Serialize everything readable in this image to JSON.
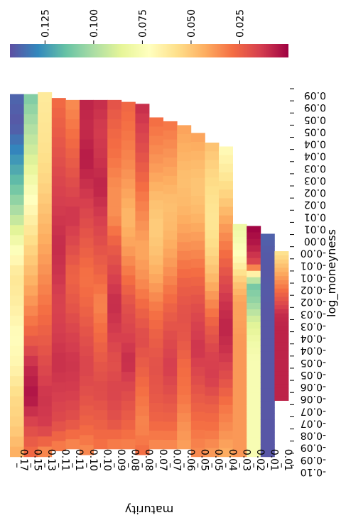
{
  "chart_data": {
    "type": "heatmap",
    "orientation": "rotated 180 degrees",
    "xlabel": "maturity",
    "ylabel": "log_moneyness",
    "maturity_ticks": [
      "0.17",
      "0.15",
      "0.13",
      "0.11",
      "0.11",
      "0.10",
      "0.10",
      "0.09",
      "0.08",
      "0.08",
      "0.07",
      "0.07",
      "0.06",
      "0.05",
      "0.05",
      "0.04",
      "0.03",
      "0.02",
      "0.01",
      "0.01"
    ],
    "log_moneyness_ticks": [
      "0.09",
      "0.09",
      "0.05",
      "0.05",
      "0.04",
      "0.04",
      "0.03",
      "0.03",
      "0.02",
      "0.02",
      "0.01",
      "0.01",
      "0.00",
      "-0.00",
      "-0.01",
      "-0.01",
      "-0.02",
      "-0.02",
      "-0.03",
      "-0.03",
      "-0.04",
      "-0.04",
      "-0.05",
      "-0.05",
      "-0.06",
      "-0.06",
      "-0.07",
      "-0.07",
      "-0.08",
      "-0.09",
      "-0.09",
      "-0.10"
    ],
    "colorbar": {
      "ticks": [
        "0.125",
        "0.100",
        "0.075",
        "0.050",
        "0.025"
      ],
      "tick_values": [
        0.125,
        0.1,
        0.075,
        0.05,
        0.025
      ],
      "range": [
        0.0,
        0.143
      ],
      "colormap": "Spectral"
    },
    "column_top_log_moneyness": [
      0.09,
      0.09,
      0.091,
      0.088,
      0.087,
      0.087,
      0.087,
      0.087,
      0.086,
      0.085,
      0.078,
      0.076,
      0.074,
      0.07,
      0.065,
      0.063,
      0.023,
      0.022,
      0.018,
      0.009
    ],
    "column_bottom_log_moneyness": [
      -0.097,
      -0.097,
      -0.097,
      -0.094,
      -0.093,
      -0.096,
      -0.093,
      -0.093,
      -0.093,
      -0.096,
      -0.093,
      -0.093,
      -0.093,
      -0.097,
      -0.097,
      -0.097,
      -0.097,
      -0.097,
      -0.097,
      -0.068
    ],
    "representative_values_by_column": [
      [
        0.137,
        0.141,
        0.127,
        0.114,
        0.097,
        0.076,
        0.06,
        0.064,
        0.071,
        0.067,
        0.056,
        0.052,
        0.042
      ],
      [
        0.11,
        0.1,
        0.09,
        0.077,
        0.066,
        0.055,
        0.046,
        0.036,
        0.025,
        0.01,
        0.004,
        0.018,
        0.029
      ],
      [
        0.062,
        0.06,
        0.058,
        0.054,
        0.048,
        0.042,
        0.036,
        0.03,
        0.024,
        0.018,
        0.012,
        0.014,
        0.038
      ],
      [
        0.028,
        0.024,
        0.02,
        0.016,
        0.013,
        0.01,
        0.012,
        0.016,
        0.014,
        0.011,
        0.014,
        0.018,
        0.034
      ],
      [
        0.036,
        0.03,
        0.024,
        0.018,
        0.012,
        0.018,
        0.026,
        0.022,
        0.016,
        0.012,
        0.014,
        0.02,
        0.036
      ],
      [
        0.008,
        0.01,
        0.006,
        0.012,
        0.018,
        0.024,
        0.03,
        0.026,
        0.02,
        0.016,
        0.02,
        0.026,
        0.036
      ],
      [
        0.01,
        0.014,
        0.012,
        0.008,
        0.014,
        0.02,
        0.026,
        0.034,
        0.028,
        0.022,
        0.018,
        0.024,
        0.03
      ],
      [
        0.02,
        0.026,
        0.03,
        0.036,
        0.036,
        0.024,
        0.016,
        0.01,
        0.014,
        0.02,
        0.016,
        0.02,
        0.034
      ],
      [
        0.026,
        0.03,
        0.034,
        0.04,
        0.046,
        0.04,
        0.03,
        0.02,
        0.016,
        0.01,
        0.018,
        0.024,
        0.034
      ],
      [
        0.01,
        0.016,
        0.022,
        0.03,
        0.036,
        0.042,
        0.036,
        0.026,
        0.018,
        0.024,
        0.03,
        0.034,
        0.028
      ],
      [
        0.028,
        0.034,
        0.04,
        0.048,
        0.052,
        0.048,
        0.04,
        0.03,
        0.024,
        0.02,
        0.022,
        0.026,
        0.036
      ],
      [
        0.03,
        0.036,
        0.042,
        0.048,
        0.046,
        0.04,
        0.032,
        0.024,
        0.018,
        0.014,
        0.02,
        0.026,
        0.036
      ],
      [
        0.04,
        0.044,
        0.048,
        0.046,
        0.04,
        0.032,
        0.024,
        0.02,
        0.022,
        0.028,
        0.03,
        0.036,
        0.04
      ],
      [
        0.04,
        0.046,
        0.05,
        0.046,
        0.038,
        0.03,
        0.022,
        0.016,
        0.012,
        0.018,
        0.024,
        0.03,
        0.036
      ],
      [
        0.048,
        0.054,
        0.058,
        0.06,
        0.056,
        0.048,
        0.036,
        0.024,
        0.016,
        0.014,
        0.024,
        0.03,
        0.04
      ],
      [
        0.07,
        0.062,
        0.052,
        0.04,
        0.03,
        0.02,
        0.012,
        0.008,
        0.012,
        0.02,
        0.03,
        0.036,
        0.044
      ],
      [
        0.082,
        0.076,
        0.066,
        0.05,
        0.04,
        0.04,
        0.038,
        0.038,
        0.038,
        0.038,
        0.038,
        0.038,
        0.038
      ],
      [
        0.0,
        0.006,
        0.018,
        0.112,
        0.104,
        0.088,
        0.08,
        0.076,
        0.076,
        0.076,
        0.076,
        0.076,
        0.076
      ],
      [
        0.138,
        0.14,
        0.141,
        0.14,
        0.141,
        0.141,
        0.141,
        0.141,
        0.141,
        0.141,
        0.141,
        0.141,
        0.141
      ],
      [
        0.06,
        0.05,
        0.04,
        0.03,
        0.02,
        0.01,
        0.008,
        0.008,
        0.008,
        0.008,
        0.008,
        0.008,
        0.008
      ]
    ],
    "grid": false
  }
}
